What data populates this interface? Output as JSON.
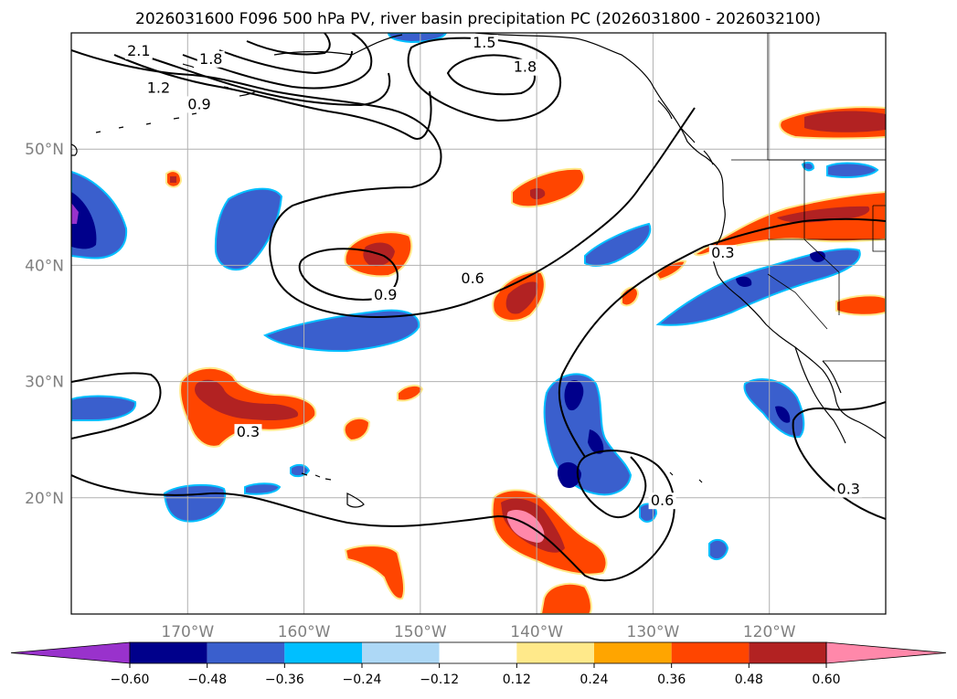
{
  "title": "2026031600 F096 500 hPa PV, river basin precipitation PC (2026031800 - 2026032100)",
  "map": {
    "lat_range": [
      10,
      60
    ],
    "lon_range": [
      -180,
      -110
    ],
    "lat_ticks": [
      {
        "value": 50,
        "label": "50°N"
      },
      {
        "value": 40,
        "label": "40°N"
      },
      {
        "value": 30,
        "label": "30°N"
      },
      {
        "value": 20,
        "label": "20°N"
      }
    ],
    "lon_ticks": [
      {
        "value": -170,
        "label": "170°W"
      },
      {
        "value": -160,
        "label": "160°W"
      },
      {
        "value": -150,
        "label": "150°W"
      },
      {
        "value": -140,
        "label": "140°W"
      },
      {
        "value": -130,
        "label": "130°W"
      },
      {
        "value": -120,
        "label": "120°W"
      }
    ],
    "grid": true
  },
  "contour_labels": [
    {
      "text": "2.1",
      "lon": -174.2,
      "lat": 58.2
    },
    {
      "text": "1.8",
      "lon": -168.0,
      "lat": 57.5
    },
    {
      "text": "1.5",
      "lon": -144.5,
      "lat": 58.9
    },
    {
      "text": "1.8",
      "lon": -141.0,
      "lat": 56.8
    },
    {
      "text": "1.2",
      "lon": -172.5,
      "lat": 55.0
    },
    {
      "text": "0.9",
      "lon": -169.0,
      "lat": 53.6
    },
    {
      "text": "0.9",
      "lon": -153.0,
      "lat": 37.2
    },
    {
      "text": "0.6",
      "lon": -145.5,
      "lat": 38.6
    },
    {
      "text": "0.3",
      "lon": -164.8,
      "lat": 25.4
    },
    {
      "text": "0.3",
      "lon": -124.0,
      "lat": 40.8
    },
    {
      "text": "0.6",
      "lon": -129.2,
      "lat": 19.5
    },
    {
      "text": "0.3",
      "lon": -113.2,
      "lat": 20.5
    }
  ],
  "colorbar": {
    "extend": "both",
    "levels": [
      -0.72,
      -0.6,
      -0.48,
      -0.36,
      -0.24,
      -0.12,
      0.12,
      0.24,
      0.36,
      0.48,
      0.6,
      0.72
    ],
    "colors": [
      "#9932cc",
      "#00008b",
      "#3a5fcd",
      "#00bfff",
      "#add8f6",
      "#ffffff",
      "#ffe98a",
      "#ffa500",
      "#ff4500",
      "#b22222",
      "#ff88aa"
    ],
    "tick_labels": [
      "-0.60",
      "-0.48",
      "-0.36",
      "-0.24",
      "-0.12",
      "0.12",
      "0.24",
      "0.36",
      "0.48",
      "0.60"
    ],
    "tick_values": [
      -0.6,
      -0.48,
      -0.36,
      -0.24,
      -0.12,
      0.12,
      0.24,
      0.36,
      0.48,
      0.6
    ]
  }
}
